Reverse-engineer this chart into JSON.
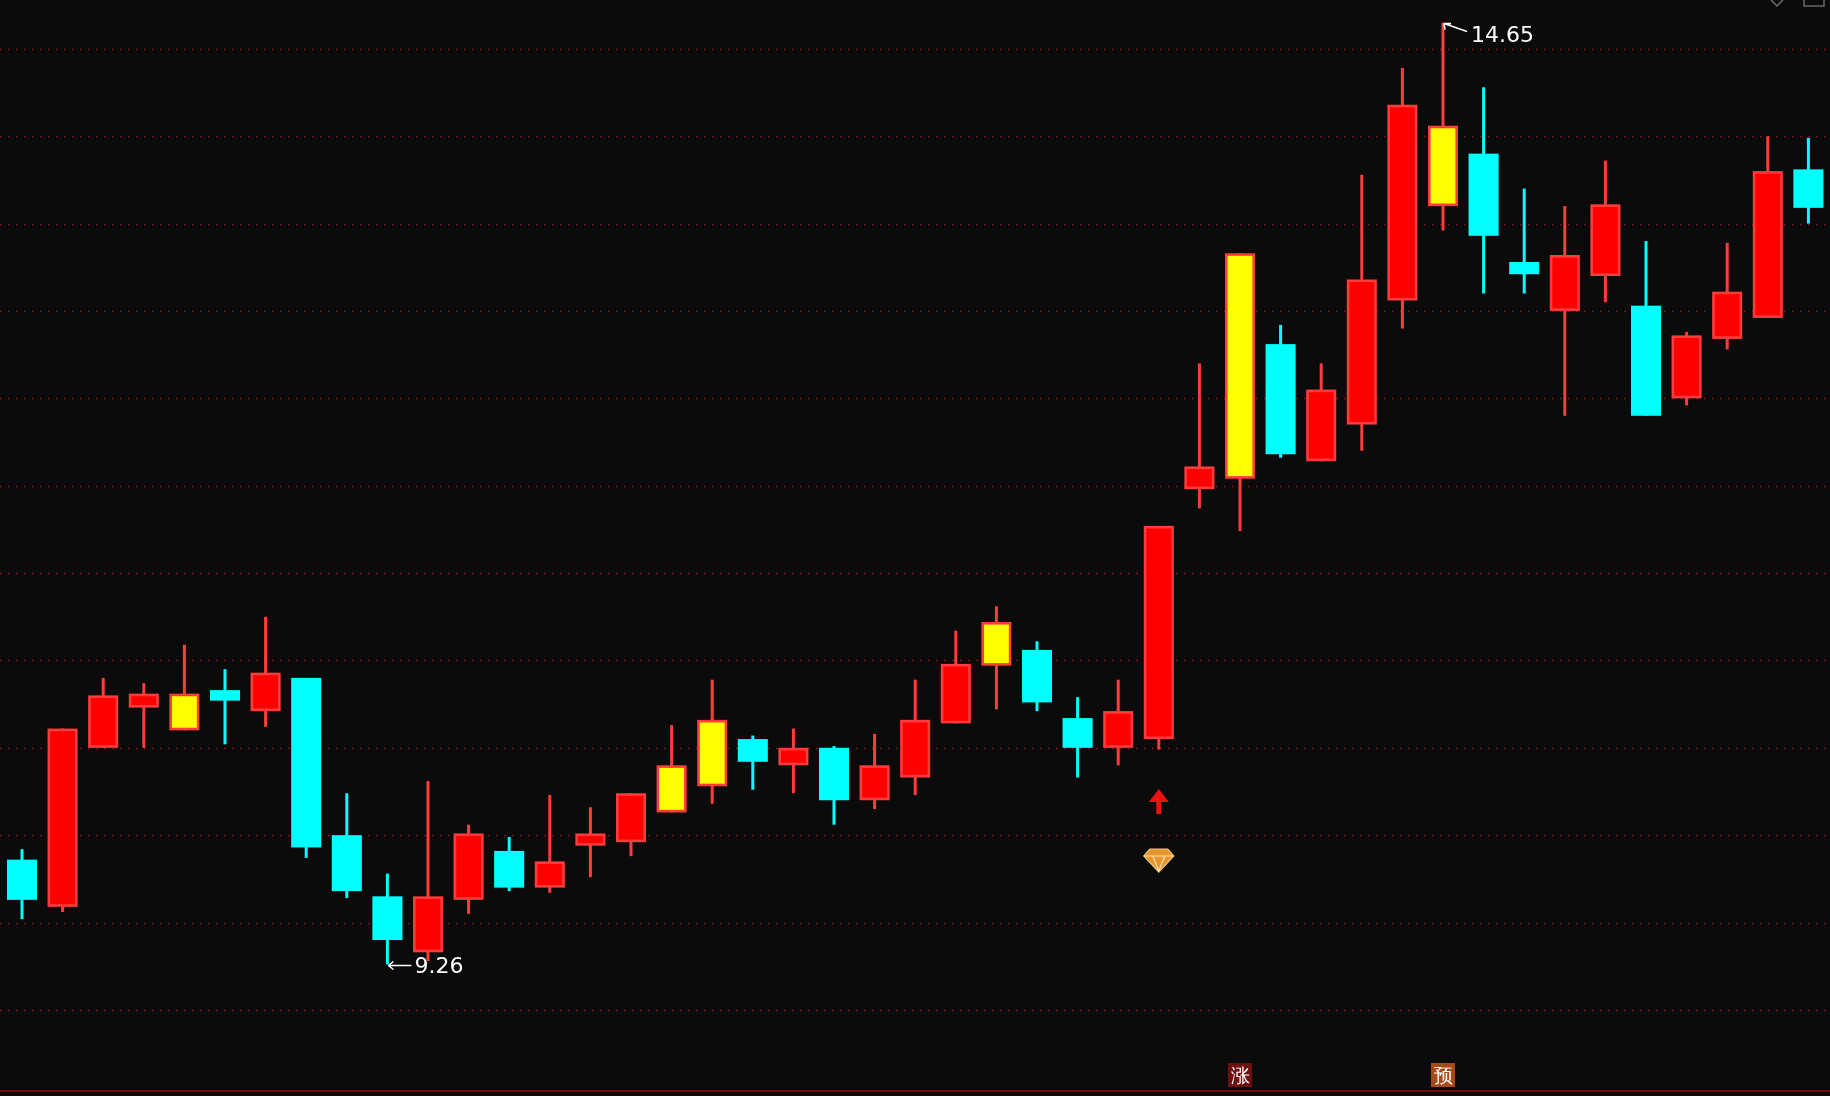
{
  "chart_data": {
    "type": "candlestick",
    "categories": [
      null,
      null,
      null,
      null,
      null,
      null,
      null,
      null,
      null,
      null,
      null,
      null,
      null,
      null,
      null,
      null,
      null,
      null,
      null,
      null,
      null,
      null,
      null,
      null,
      null,
      null,
      null,
      null,
      null,
      null,
      null,
      null,
      null,
      null,
      null,
      null,
      null,
      null,
      null,
      null,
      null,
      null,
      null,
      null,
      null
    ],
    "ohlc": [
      [
        9.86,
        9.92,
        9.52,
        9.63
      ],
      [
        9.59,
        10.61,
        9.56,
        10.61
      ],
      [
        10.5,
        10.9,
        10.5,
        10.8
      ],
      [
        10.73,
        10.87,
        10.5,
        10.81
      ],
      [
        10.6,
        11.09,
        10.6,
        10.81
      ],
      [
        10.83,
        10.95,
        10.52,
        10.77
      ],
      [
        10.71,
        11.25,
        10.62,
        10.93
      ],
      [
        10.9,
        10.9,
        9.87,
        9.93
      ],
      [
        10.0,
        10.24,
        9.64,
        9.68
      ],
      [
        9.65,
        9.78,
        9.26,
        9.4
      ],
      [
        9.33,
        10.31,
        9.28,
        9.65
      ],
      [
        9.63,
        10.06,
        9.55,
        10.01
      ],
      [
        9.91,
        9.99,
        9.68,
        9.7
      ],
      [
        9.7,
        10.23,
        9.67,
        9.85
      ],
      [
        9.94,
        10.16,
        9.76,
        10.01
      ],
      [
        9.96,
        10.24,
        9.88,
        10.24
      ],
      [
        10.13,
        10.63,
        10.13,
        10.4
      ],
      [
        10.28,
        10.89,
        10.18,
        10.66
      ],
      [
        10.55,
        10.57,
        10.26,
        10.42
      ],
      [
        10.4,
        10.61,
        10.24,
        10.5
      ],
      [
        10.5,
        10.51,
        10.06,
        10.2
      ],
      [
        10.2,
        10.58,
        10.15,
        10.4
      ],
      [
        10.33,
        10.89,
        10.23,
        10.66
      ],
      [
        10.64,
        11.17,
        10.64,
        10.98
      ],
      [
        10.97,
        11.31,
        10.72,
        11.22
      ],
      [
        11.06,
        11.11,
        10.71,
        10.76
      ],
      [
        10.67,
        10.79,
        10.33,
        10.5
      ],
      [
        10.5,
        10.89,
        10.4,
        10.71
      ],
      [
        10.55,
        11.77,
        10.49,
        11.77
      ],
      [
        11.98,
        12.7,
        11.87,
        12.11
      ],
      [
        12.04,
        13.33,
        11.74,
        13.33
      ],
      [
        12.81,
        12.92,
        12.16,
        12.18
      ],
      [
        12.14,
        12.7,
        12.14,
        12.55
      ],
      [
        12.35,
        13.78,
        12.2,
        13.18
      ],
      [
        13.06,
        14.39,
        12.9,
        14.18
      ],
      [
        13.6,
        14.65,
        13.46,
        14.06
      ],
      [
        13.9,
        14.28,
        13.1,
        13.43
      ],
      [
        13.28,
        13.7,
        13.1,
        13.21
      ],
      [
        13.0,
        13.6,
        12.4,
        13.32
      ],
      [
        13.2,
        13.86,
        13.05,
        13.61
      ],
      [
        13.03,
        13.4,
        12.4,
        12.4
      ],
      [
        12.5,
        12.88,
        12.46,
        12.86
      ],
      [
        12.84,
        13.39,
        12.78,
        13.11
      ],
      [
        12.96,
        14.0,
        12.96,
        13.8
      ],
      [
        13.81,
        13.99,
        13.5,
        13.59
      ]
    ],
    "color": "#ff3c3c",
    "colors": [
      "#00ffff",
      "#ff0000",
      "#ff0000",
      "#ff0000",
      "#ffff00",
      "#00ffff",
      "#ff0000",
      "#00ffff",
      "#00ffff",
      "#00ffff",
      "#ff0000",
      "#ff0000",
      "#00ffff",
      "#ff0000",
      "#ff0000",
      "#ff0000",
      "#ffff00",
      "#ffff00",
      "#00ffff",
      "#ff0000",
      "#00ffff",
      "#ff0000",
      "#ff0000",
      "#ff0000",
      "#ffff00",
      "#00ffff",
      "#00ffff",
      "#ff0000",
      "#ff0000",
      "#ff0000",
      "#ffff00",
      "#00ffff",
      "#ff0000",
      "#ff0000",
      "#ff0000",
      "#ffff00",
      "#00ffff",
      "#00ffff",
      "#ff0000",
      "#ff0000",
      "#00ffff",
      "#ff0000",
      "#ff0000",
      "#ff0000",
      "#00ffff"
    ],
    "yticks": [
      {
        "value": 9,
        "label": null
      },
      {
        "value": 9.5,
        "label": null
      },
      {
        "value": 10,
        "label": null
      },
      {
        "value": 10.5,
        "label": null
      },
      {
        "value": 11,
        "label": null
      },
      {
        "value": 11.5,
        "label": null
      },
      {
        "value": 12,
        "label": null
      },
      {
        "value": 12.5,
        "label": null
      },
      {
        "value": 13,
        "label": null
      },
      {
        "value": 13.5,
        "label": null
      },
      {
        "value": 14,
        "label": null
      },
      {
        "value": 14.5,
        "label": null
      }
    ],
    "grid": "y",
    "annotations": [
      "14.65",
      "9.26"
    ],
    "value_labels": [
      null,
      null,
      null,
      null,
      null,
      null,
      null,
      null,
      null,
      null,
      null,
      null,
      null,
      null,
      null,
      null,
      null,
      null,
      null,
      null,
      null,
      null,
      null,
      null,
      null,
      null,
      null,
      null,
      null,
      null,
      "涨",
      null,
      null,
      null,
      null,
      "预",
      null,
      null,
      null,
      null,
      null,
      null,
      null,
      null,
      null
    ]
  }
}
